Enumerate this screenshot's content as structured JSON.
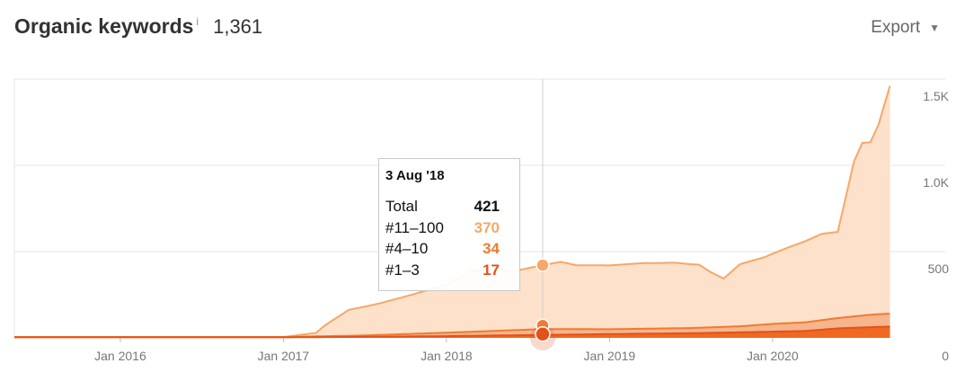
{
  "header": {
    "title": "Organic keywords",
    "info_mark": "i",
    "count": "1,361",
    "export_label": "Export"
  },
  "colors": {
    "series_11_100": "#f7a768",
    "series_4_10": "#f07a32",
    "series_1_3": "#e2531a",
    "fill_11_100": "#fde1ca",
    "fill_4_10": "#f6b58c",
    "fill_1_3": "#ee6a22",
    "grid": "#e6e6e6"
  },
  "tooltip": {
    "date": "3 Aug '18",
    "rows": [
      {
        "label": "Total",
        "value": "421",
        "color": "#111111"
      },
      {
        "label": "#11–100",
        "value": "370",
        "color": "#f7a768"
      },
      {
        "label": "#4–10",
        "value": "34",
        "color": "#f07a32"
      },
      {
        "label": "#1–3",
        "value": "17",
        "color": "#e2531a"
      }
    ]
  },
  "chart_data": {
    "type": "area",
    "stacked": true,
    "x_tick_labels": [
      "Jan 2016",
      "Jan 2017",
      "Jan 2018",
      "Jan 2019",
      "Jan 2020"
    ],
    "y_tick_labels": [
      "0",
      "500",
      "1.0K",
      "1.5K"
    ],
    "ylim": [
      0,
      1500
    ],
    "xlim": [
      2015.35,
      2020.8
    ],
    "grid": true,
    "hover_x": 2018.59,
    "series": [
      {
        "name": "#1–3",
        "x": [
          2015.35,
          2016.0,
          2017.0,
          2017.5,
          2018.0,
          2018.59,
          2019.0,
          2019.5,
          2019.8,
          2020.0,
          2020.2,
          2020.4,
          2020.6,
          2020.7
        ],
        "values": [
          3,
          3,
          3,
          6,
          10,
          17,
          22,
          27,
          32,
          36,
          40,
          55,
          62,
          65
        ]
      },
      {
        "name": "#4–10",
        "x": [
          2015.35,
          2016.0,
          2017.0,
          2017.5,
          2018.0,
          2018.59,
          2019.0,
          2019.5,
          2019.8,
          2020.0,
          2020.2,
          2020.4,
          2020.6,
          2020.7
        ],
        "values": [
          2,
          2,
          2,
          8,
          20,
          34,
          28,
          30,
          35,
          45,
          50,
          60,
          72,
          75
        ]
      },
      {
        "name": "#11–100",
        "x": [
          2015.35,
          2016.0,
          2017.0,
          2017.2,
          2017.25,
          2017.4,
          2017.6,
          2017.8,
          2018.0,
          2018.15,
          2018.3,
          2018.4,
          2018.59,
          2018.7,
          2018.8,
          2019.0,
          2019.2,
          2019.4,
          2019.55,
          2019.62,
          2019.7,
          2019.8,
          2019.95,
          2020.1,
          2020.2,
          2020.3,
          2020.4,
          2020.45,
          2020.5,
          2020.55,
          2020.6,
          2020.65,
          2020.72
        ],
        "values": [
          0,
          0,
          0,
          20,
          60,
          150,
          185,
          230,
          280,
          350,
          370,
          340,
          370,
          390,
          370,
          370,
          380,
          380,
          365,
          320,
          280,
          360,
          390,
          440,
          470,
          500,
          500,
          700,
          900,
          1000,
          1000,
          1100,
          1320
        ]
      }
    ]
  }
}
